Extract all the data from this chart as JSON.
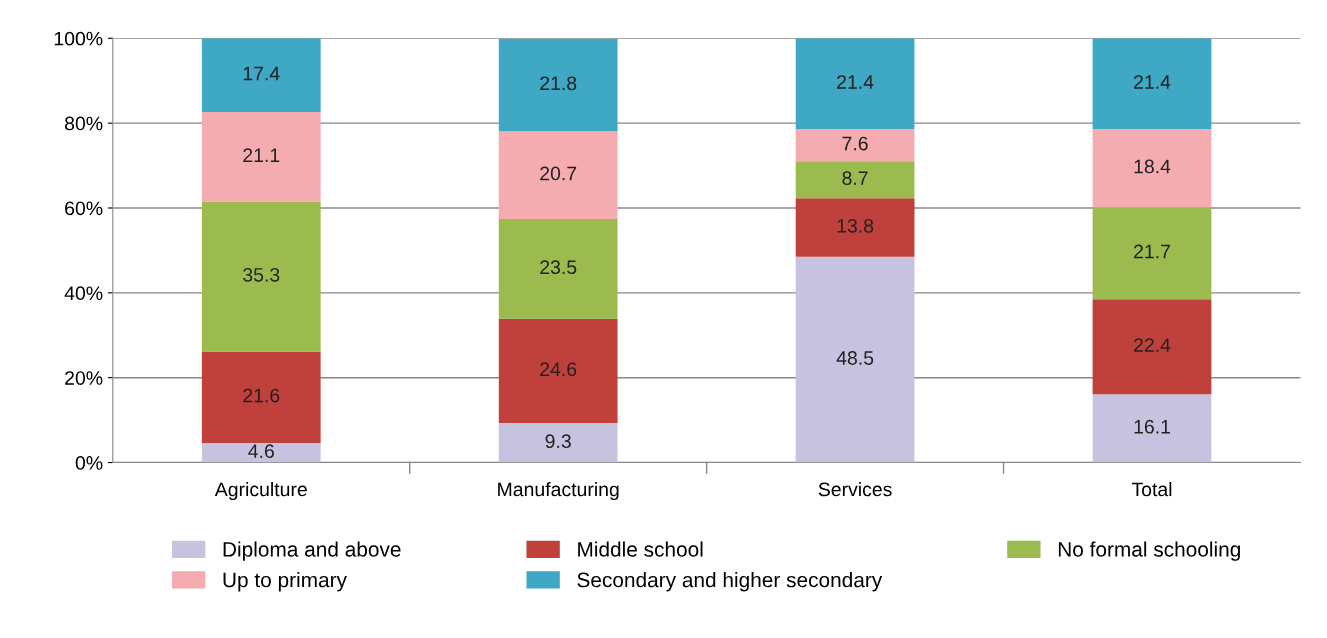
{
  "chart_data": {
    "type": "bar",
    "stacked": true,
    "categories": [
      "Agriculture",
      "Manufacturing",
      "Services",
      "Total"
    ],
    "series": [
      {
        "name": "Diploma and above",
        "color": "#c6c2e0",
        "values": [
          4.6,
          9.3,
          48.5,
          16.1
        ]
      },
      {
        "name": "Middle school",
        "color": "#c0403c",
        "values": [
          21.6,
          24.6,
          13.8,
          22.4
        ]
      },
      {
        "name": "No formal schooling",
        "color": "#9bbb4f",
        "values": [
          35.3,
          23.5,
          8.7,
          21.7
        ]
      },
      {
        "name": "Up to primary",
        "color": "#f4acb0",
        "values": [
          21.1,
          20.7,
          7.6,
          18.4
        ]
      },
      {
        "name": "Secondary and higher secondary",
        "color": "#3fa8c4",
        "values": [
          17.4,
          21.8,
          21.4,
          21.4
        ]
      }
    ],
    "ylim": [
      0,
      100
    ],
    "yticks": [
      {
        "value": 0,
        "label": "0%"
      },
      {
        "value": 20,
        "label": "20%"
      },
      {
        "value": 40,
        "label": "40%"
      },
      {
        "value": 60,
        "label": "60%"
      },
      {
        "value": 80,
        "label": "80%"
      },
      {
        "value": 100,
        "label": "100%"
      }
    ],
    "grid": "y",
    "legend": "bottom",
    "data_labels": true
  }
}
